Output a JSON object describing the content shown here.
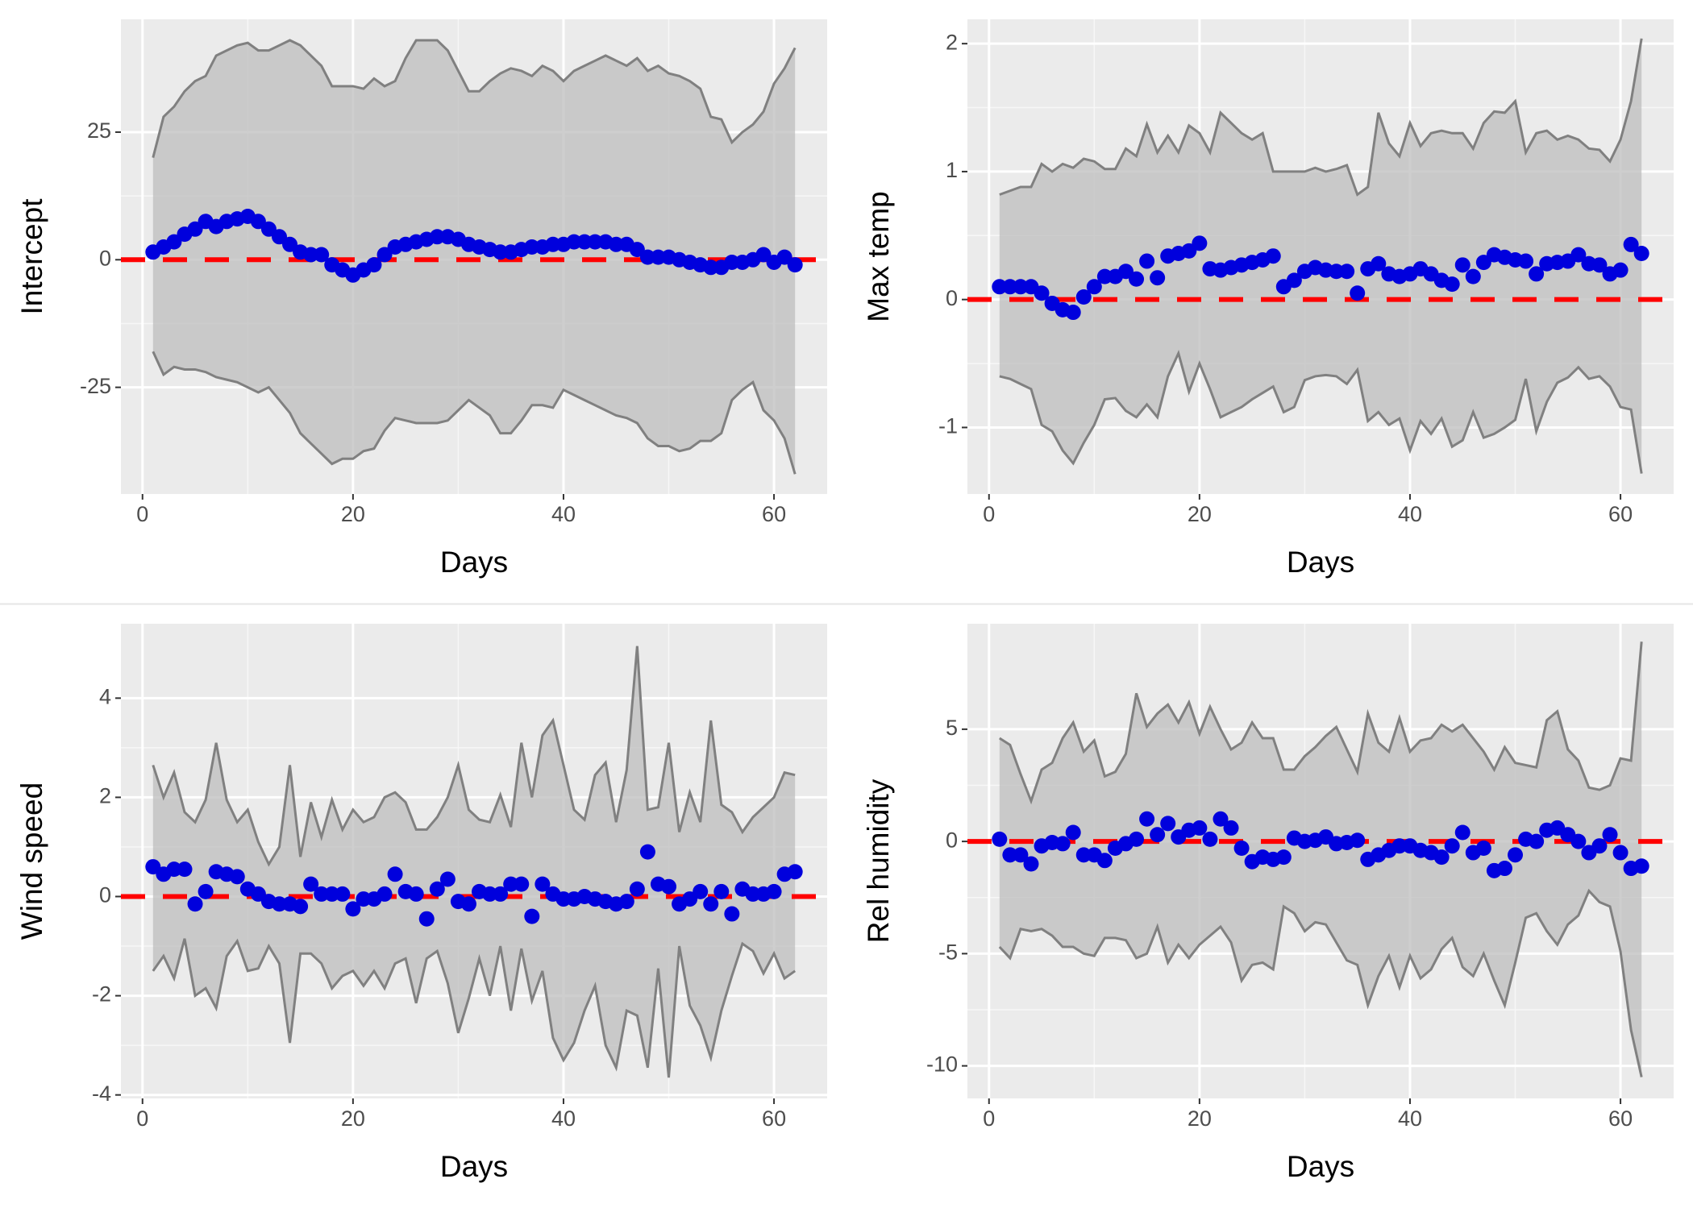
{
  "chart_data": [
    {
      "type": "ribbon",
      "xlabel": "Days",
      "ylabel": "Intercept",
      "x": [
        1,
        2,
        3,
        4,
        5,
        6,
        7,
        8,
        9,
        10,
        11,
        12,
        13,
        14,
        15,
        16,
        17,
        18,
        19,
        20,
        21,
        22,
        23,
        24,
        25,
        26,
        27,
        28,
        29,
        30,
        31,
        32,
        33,
        34,
        35,
        36,
        37,
        38,
        39,
        40,
        41,
        42,
        43,
        44,
        45,
        46,
        47,
        48,
        49,
        50,
        51,
        52,
        53,
        54,
        55,
        56,
        57,
        58,
        59,
        60,
        61,
        62
      ],
      "values": [
        1.5,
        2.5,
        3.5,
        5,
        6,
        7.5,
        6.5,
        7.5,
        8,
        8.5,
        7.5,
        6,
        4.5,
        3,
        1.5,
        1,
        1,
        -1,
        -2,
        -3,
        -2,
        -1,
        1,
        2.5,
        3,
        3.5,
        4,
        4.5,
        4.5,
        4,
        3,
        2.5,
        2,
        1.5,
        1.5,
        2,
        2.5,
        2.5,
        3,
        3,
        3.5,
        3.5,
        3.5,
        3.5,
        3,
        3,
        2,
        0.5,
        0.5,
        0.5,
        0,
        -0.5,
        -1,
        -1.5,
        -1.5,
        -0.5,
        -0.5,
        0,
        1,
        -0.5,
        0.5,
        -1
      ],
      "upper": [
        20,
        28,
        30,
        33,
        35,
        36,
        40,
        41,
        42,
        42.5,
        41,
        41,
        42,
        43,
        42,
        40,
        38,
        34,
        34,
        34,
        33.5,
        35.5,
        34,
        35,
        39.5,
        43,
        43,
        43,
        41,
        37,
        33,
        33,
        35,
        36.5,
        37.5,
        37,
        36,
        38,
        37,
        35,
        37,
        38,
        39,
        40,
        39,
        38,
        39.5,
        37,
        38,
        36.5,
        36,
        35,
        33.5,
        28,
        27.5,
        23,
        25,
        26.5,
        29,
        34.5,
        37.5,
        41.5
      ],
      "lower": [
        -18,
        -22.5,
        -21,
        -21.5,
        -21.5,
        -22,
        -23,
        -23.5,
        -24,
        -25,
        -26,
        -25,
        -27.5,
        -30,
        -34,
        -36,
        -38,
        -40,
        -39,
        -39,
        -37.5,
        -37,
        -33.5,
        -31,
        -31.5,
        -32,
        -32,
        -32,
        -31.5,
        -29.5,
        -27.5,
        -29,
        -30.5,
        -34,
        -34,
        -31.5,
        -28.5,
        -28.5,
        -29,
        -25.5,
        -26.5,
        -27.5,
        -28.5,
        -29.5,
        -30.5,
        -31,
        -32,
        -35,
        -36.5,
        -36.5,
        -37.5,
        -37,
        -35.5,
        -35.5,
        -34,
        -27.5,
        -25.5,
        -24,
        -29.5,
        -31.5,
        -35,
        -42
      ],
      "point_color": "#0000dd",
      "band_color": "#bebebe",
      "line_color": "#808080",
      "ref_line": {
        "value": 0,
        "color": "#ff0000"
      },
      "xlim": [
        -2.05,
        65.05
      ],
      "ylim": [
        -45.9,
        47.1
      ],
      "xticks": [
        0,
        20,
        40,
        60
      ],
      "yticks": [
        -25,
        0,
        25
      ],
      "grid": true
    },
    {
      "type": "ribbon",
      "xlabel": "Days",
      "ylabel": "Max temp",
      "x": [
        1,
        2,
        3,
        4,
        5,
        6,
        7,
        8,
        9,
        10,
        11,
        12,
        13,
        14,
        15,
        16,
        17,
        18,
        19,
        20,
        21,
        22,
        23,
        24,
        25,
        26,
        27,
        28,
        29,
        30,
        31,
        32,
        33,
        34,
        35,
        36,
        37,
        38,
        39,
        40,
        41,
        42,
        43,
        44,
        45,
        46,
        47,
        48,
        49,
        50,
        51,
        52,
        53,
        54,
        55,
        56,
        57,
        58,
        59,
        60,
        61,
        62
      ],
      "values": [
        0.1,
        0.1,
        0.1,
        0.1,
        0.05,
        -0.03,
        -0.08,
        -0.1,
        0.02,
        0.1,
        0.18,
        0.18,
        0.22,
        0.16,
        0.3,
        0.17,
        0.34,
        0.36,
        0.38,
        0.44,
        0.24,
        0.23,
        0.25,
        0.27,
        0.29,
        0.31,
        0.34,
        0.1,
        0.15,
        0.22,
        0.25,
        0.23,
        0.22,
        0.22,
        0.05,
        0.24,
        0.28,
        0.2,
        0.18,
        0.2,
        0.24,
        0.2,
        0.15,
        0.12,
        0.27,
        0.18,
        0.29,
        0.35,
        0.33,
        0.31,
        0.3,
        0.2,
        0.28,
        0.29,
        0.3,
        0.35,
        0.28,
        0.27,
        0.2,
        0.23,
        0.43,
        0.36
      ],
      "upper": [
        0.82,
        0.85,
        0.88,
        0.88,
        1.06,
        1.0,
        1.06,
        1.03,
        1.1,
        1.08,
        1.02,
        1.02,
        1.18,
        1.12,
        1.37,
        1.15,
        1.28,
        1.15,
        1.36,
        1.3,
        1.15,
        1.46,
        1.38,
        1.3,
        1.25,
        1.3,
        1.0,
        1.0,
        1.0,
        1.0,
        1.03,
        1.0,
        1.02,
        1.05,
        0.82,
        0.88,
        1.46,
        1.22,
        1.12,
        1.38,
        1.2,
        1.3,
        1.32,
        1.3,
        1.3,
        1.18,
        1.38,
        1.47,
        1.46,
        1.55,
        1.15,
        1.3,
        1.32,
        1.25,
        1.28,
        1.25,
        1.18,
        1.17,
        1.08,
        1.25,
        1.55,
        2.04
      ],
      "lower": [
        -0.6,
        -0.62,
        -0.66,
        -0.7,
        -0.98,
        -1.03,
        -1.18,
        -1.28,
        -1.12,
        -0.98,
        -0.78,
        -0.77,
        -0.87,
        -0.92,
        -0.82,
        -0.92,
        -0.6,
        -0.42,
        -0.72,
        -0.5,
        -0.7,
        -0.92,
        -0.88,
        -0.84,
        -0.78,
        -0.73,
        -0.68,
        -0.88,
        -0.84,
        -0.63,
        -0.6,
        -0.59,
        -0.6,
        -0.66,
        -0.55,
        -0.95,
        -0.88,
        -0.98,
        -0.93,
        -1.18,
        -0.95,
        -1.05,
        -0.93,
        -1.15,
        -1.1,
        -0.88,
        -1.08,
        -1.05,
        -1.0,
        -0.94,
        -0.62,
        -1.03,
        -0.8,
        -0.65,
        -0.61,
        -0.53,
        -0.62,
        -0.6,
        -0.68,
        -0.84,
        -0.86,
        -1.36
      ],
      "point_color": "#0000dd",
      "band_color": "#bebebe",
      "line_color": "#808080",
      "ref_line": {
        "value": 0,
        "color": "#ff0000"
      },
      "xlim": [
        -2.05,
        65.05
      ],
      "ylim": [
        -1.52,
        2.19
      ],
      "xticks": [
        0,
        20,
        40,
        60
      ],
      "yticks": [
        -1,
        0,
        1,
        2
      ],
      "grid": true
    },
    {
      "type": "ribbon",
      "xlabel": "Days",
      "ylabel": "Wind speed",
      "x": [
        1,
        2,
        3,
        4,
        5,
        6,
        7,
        8,
        9,
        10,
        11,
        12,
        13,
        14,
        15,
        16,
        17,
        18,
        19,
        20,
        21,
        22,
        23,
        24,
        25,
        26,
        27,
        28,
        29,
        30,
        31,
        32,
        33,
        34,
        35,
        36,
        37,
        38,
        39,
        40,
        41,
        42,
        43,
        44,
        45,
        46,
        47,
        48,
        49,
        50,
        51,
        52,
        53,
        54,
        55,
        56,
        57,
        58,
        59,
        60,
        61,
        62
      ],
      "values": [
        0.6,
        0.45,
        0.55,
        0.55,
        -0.15,
        0.1,
        0.5,
        0.45,
        0.4,
        0.15,
        0.05,
        -0.1,
        -0.15,
        -0.15,
        -0.2,
        0.25,
        0.05,
        0.05,
        0.05,
        -0.25,
        -0.05,
        -0.05,
        0.05,
        0.45,
        0.1,
        0.05,
        -0.45,
        0.15,
        0.35,
        -0.1,
        -0.15,
        0.1,
        0.05,
        0.05,
        0.25,
        0.25,
        -0.4,
        0.25,
        0.05,
        -0.05,
        -0.05,
        0,
        -0.05,
        -0.1,
        -0.15,
        -0.1,
        0.15,
        0.9,
        0.25,
        0.2,
        -0.15,
        -0.05,
        0.1,
        -0.15,
        0.1,
        -0.35,
        0.15,
        0.05,
        0.05,
        0.1,
        0.45,
        0.5
      ],
      "upper": [
        2.65,
        2,
        2.5,
        1.7,
        1.5,
        1.95,
        3.1,
        1.95,
        1.5,
        1.75,
        1.1,
        0.65,
        1.0,
        2.65,
        0.8,
        1.9,
        1.2,
        1.95,
        1.35,
        1.75,
        1.5,
        1.6,
        2.0,
        2.1,
        1.9,
        1.35,
        1.35,
        1.6,
        2.0,
        2.65,
        1.75,
        1.55,
        1.5,
        2.05,
        1.4,
        3.1,
        2.0,
        3.25,
        3.55,
        2.65,
        1.75,
        1.55,
        2.45,
        2.7,
        1.5,
        2.55,
        5.05,
        1.75,
        1.8,
        3.1,
        1.3,
        2.1,
        1.5,
        3.55,
        1.85,
        1.7,
        1.3,
        1.6,
        1.8,
        2.0,
        2.5,
        2.45
      ],
      "lower": [
        -1.5,
        -1.2,
        -1.65,
        -0.85,
        -2.0,
        -1.85,
        -2.25,
        -1.2,
        -0.9,
        -1.5,
        -1.45,
        -1.0,
        -1.35,
        -2.95,
        -1.15,
        -1.15,
        -1.35,
        -1.85,
        -1.6,
        -1.5,
        -1.8,
        -1.5,
        -1.85,
        -1.35,
        -1.25,
        -2.15,
        -1.25,
        -1.1,
        -1.75,
        -2.75,
        -2.05,
        -1.25,
        -2.0,
        -1.0,
        -2.3,
        -1.05,
        -2.1,
        -1.5,
        -2.85,
        -3.3,
        -2.95,
        -2.3,
        -1.8,
        -3.0,
        -3.45,
        -2.3,
        -2.4,
        -3.45,
        -1.45,
        -3.65,
        -1.0,
        -2.2,
        -2.6,
        -3.25,
        -2.3,
        -1.6,
        -0.95,
        -1.1,
        -1.55,
        -1.15,
        -1.65,
        -1.5
      ],
      "point_color": "#0000dd",
      "band_color": "#bebebe",
      "line_color": "#808080",
      "ref_line": {
        "value": 0,
        "color": "#ff0000"
      },
      "xlim": [
        -2.05,
        65.05
      ],
      "ylim": [
        -4.07,
        5.5
      ],
      "xticks": [
        0,
        20,
        40,
        60
      ],
      "yticks": [
        -4,
        -2,
        0,
        2,
        4
      ],
      "grid": true
    },
    {
      "type": "ribbon",
      "xlabel": "Days",
      "ylabel": "Rel humidity",
      "x": [
        1,
        2,
        3,
        4,
        5,
        6,
        7,
        8,
        9,
        10,
        11,
        12,
        13,
        14,
        15,
        16,
        17,
        18,
        19,
        20,
        21,
        22,
        23,
        24,
        25,
        26,
        27,
        28,
        29,
        30,
        31,
        32,
        33,
        34,
        35,
        36,
        37,
        38,
        39,
        40,
        41,
        42,
        43,
        44,
        45,
        46,
        47,
        48,
        49,
        50,
        51,
        52,
        53,
        54,
        55,
        56,
        57,
        58,
        59,
        60,
        61,
        62
      ],
      "values": [
        0.1,
        -0.6,
        -0.6,
        -1.0,
        -0.2,
        -0.05,
        -0.1,
        0.4,
        -0.6,
        -0.6,
        -0.85,
        -0.3,
        -0.1,
        0.1,
        1.0,
        0.3,
        0.8,
        0.2,
        0.5,
        0.6,
        0.1,
        1.0,
        0.6,
        -0.3,
        -0.9,
        -0.7,
        -0.8,
        -0.7,
        0.15,
        0,
        0.05,
        0.2,
        -0.1,
        -0.05,
        0.05,
        -0.8,
        -0.6,
        -0.4,
        -0.2,
        -0.2,
        -0.4,
        -0.5,
        -0.7,
        -0.2,
        0.4,
        -0.5,
        -0.3,
        -1.3,
        -1.2,
        -0.6,
        0.1,
        0,
        0.5,
        0.6,
        0.3,
        0,
        -0.5,
        -0.2,
        0.3,
        -0.5,
        -1.2,
        -1.1
      ],
      "upper": [
        4.6,
        4.3,
        3.0,
        1.8,
        3.2,
        3.5,
        4.6,
        5.3,
        4.0,
        4.5,
        2.9,
        3.1,
        3.9,
        6.6,
        5.1,
        5.7,
        6.1,
        5.3,
        6.2,
        4.8,
        6.0,
        5.0,
        4.1,
        4.4,
        5.3,
        4.6,
        4.6,
        3.2,
        3.2,
        3.8,
        4.2,
        4.7,
        5.1,
        4.1,
        3.1,
        5.7,
        4.4,
        4.0,
        5.5,
        4.0,
        4.5,
        4.6,
        5.2,
        4.9,
        5.2,
        4.6,
        4.0,
        3.2,
        4.2,
        3.5,
        3.4,
        3.3,
        5.4,
        5.8,
        4.1,
        3.6,
        2.4,
        2.3,
        2.5,
        3.7,
        3.6,
        8.9
      ],
      "lower": [
        -4.7,
        -5.2,
        -3.9,
        -4.0,
        -3.9,
        -4.2,
        -4.7,
        -4.7,
        -5.0,
        -5.1,
        -4.3,
        -4.3,
        -4.4,
        -5.2,
        -5.0,
        -3.8,
        -5.4,
        -4.6,
        -5.2,
        -4.6,
        -4.2,
        -3.8,
        -4.5,
        -6.2,
        -5.5,
        -5.4,
        -5.7,
        -2.9,
        -3.2,
        -4.0,
        -3.6,
        -3.7,
        -4.5,
        -5.3,
        -5.5,
        -7.3,
        -6.0,
        -5.1,
        -6.5,
        -5.1,
        -6.1,
        -5.7,
        -4.8,
        -4.3,
        -5.6,
        -6.0,
        -5.0,
        -6.2,
        -7.3,
        -5.4,
        -3.4,
        -3.2,
        -4.0,
        -4.6,
        -3.7,
        -3.3,
        -2.2,
        -2.7,
        -2.9,
        -4.9,
        -8.4,
        -10.5
      ],
      "point_color": "#0000dd",
      "band_color": "#bebebe",
      "line_color": "#808080",
      "ref_line": {
        "value": 0,
        "color": "#ff0000"
      },
      "xlim": [
        -2.05,
        65.05
      ],
      "ylim": [
        -11.45,
        9.7
      ],
      "xticks": [
        0,
        20,
        40,
        60
      ],
      "yticks": [
        -10,
        -5,
        0,
        5
      ],
      "grid": true
    }
  ]
}
